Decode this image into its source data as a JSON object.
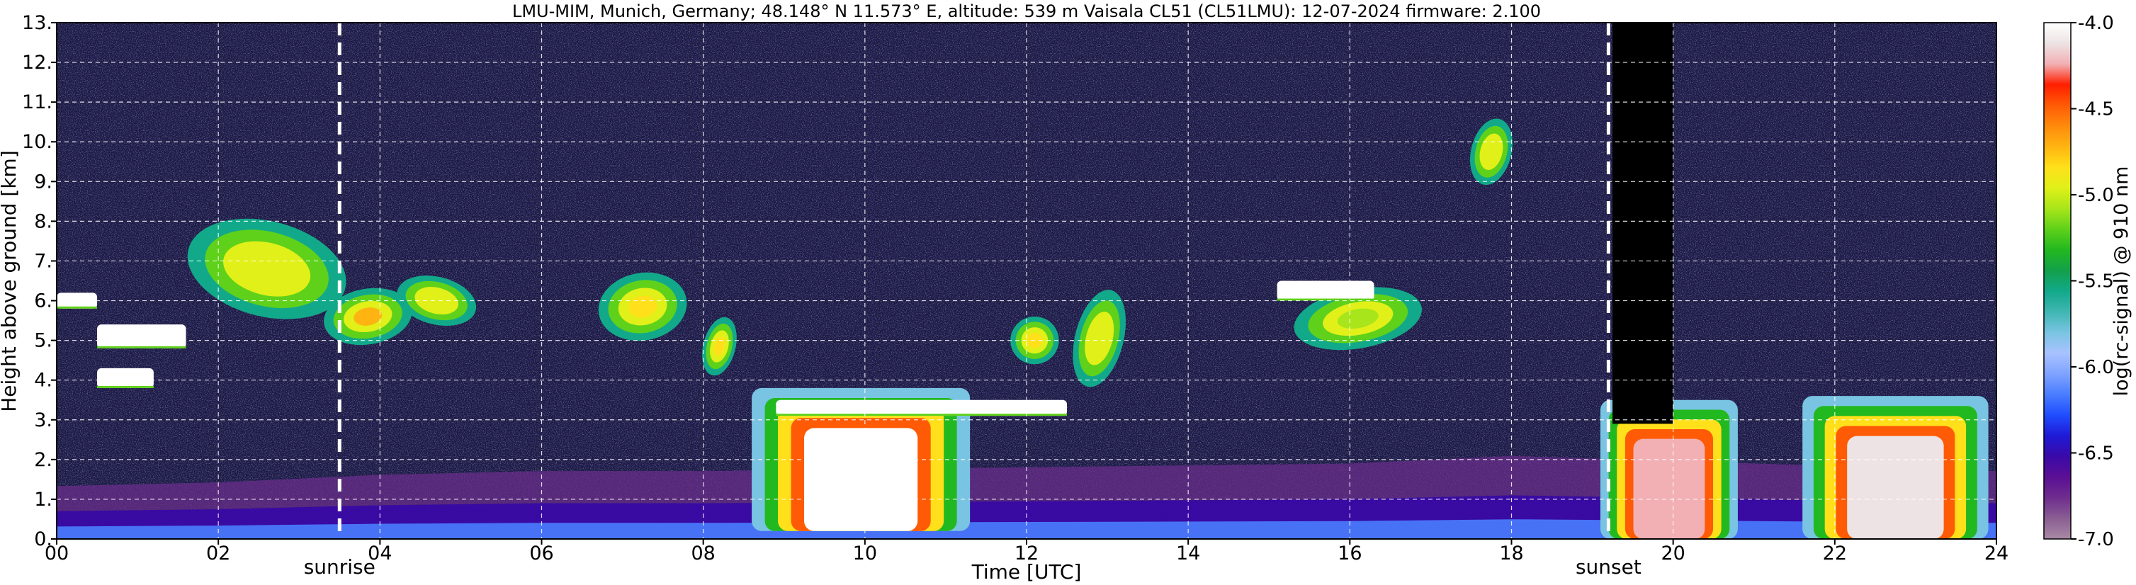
{
  "chart_data": {
    "type": "heatmap",
    "title": "LMU-MIM, Munich, Germany; 48.148° N 11.573° E, altitude: 539 m    Vaisala CL51 (CL51LMU): 12-07-2024    firmware: 2.100",
    "xlabel": "Time [UTC]",
    "ylabel": "Height above ground [km]",
    "xlim": [
      0,
      24
    ],
    "ylim": [
      0,
      13
    ],
    "x_ticks": [
      "00",
      "02",
      "04",
      "06",
      "08",
      "10",
      "12",
      "14",
      "16",
      "18",
      "20",
      "22",
      "24"
    ],
    "y_ticks": [
      "0.",
      "1.",
      "2.",
      "3.",
      "4.",
      "5.",
      "6.",
      "7.",
      "8.",
      "9.",
      "10.",
      "11.",
      "12.",
      "13."
    ],
    "grid": true,
    "colorbar": {
      "label": "log(rc-signal) @ 910 nm",
      "range": [
        -7.0,
        -4.0
      ],
      "ticks": [
        "-4.0",
        "-4.5",
        "-5.0",
        "-5.5",
        "-6.0",
        "-6.5",
        "-7.0"
      ],
      "tick_values": [
        -4.0,
        -4.5,
        -5.0,
        -5.5,
        -6.0,
        -6.5,
        -7.0
      ],
      "colors": [
        "#a98aa5",
        "#8a5e92",
        "#6e2d8e",
        "#5b0f95",
        "#3a0aa8",
        "#1f1ad6",
        "#1f4dff",
        "#4a7dff",
        "#7fa3ff",
        "#a9c2ff",
        "#79c4e2",
        "#3fb6b2",
        "#12a98a",
        "#13a04a",
        "#22b81f",
        "#5fd11a",
        "#a8e51a",
        "#e0f018",
        "#ffe01a",
        "#ffb411",
        "#ff8a0c",
        "#ff5a05",
        "#ff1f00",
        "#f2b0b4",
        "#ede3e4",
        "#ffffff"
      ]
    },
    "markers": [
      {
        "label": "sunrise",
        "time": 3.5
      },
      {
        "label": "sunset",
        "time": 19.2
      }
    ],
    "boundary_layer": [
      {
        "t": 0,
        "h": 0.7
      },
      {
        "t": 2,
        "h": 0.75
      },
      {
        "t": 4,
        "h": 0.85
      },
      {
        "t": 6,
        "h": 0.9
      },
      {
        "t": 8,
        "h": 0.9
      },
      {
        "t": 12,
        "h": 0.95
      },
      {
        "t": 16,
        "h": 1.0
      },
      {
        "t": 18,
        "h": 1.1
      },
      {
        "t": 24,
        "h": 0.9
      }
    ],
    "features": [
      {
        "kind": "cloud",
        "t0": 1.6,
        "t1": 3.6,
        "h0": 5.6,
        "h1": 8.0,
        "level": -4.9
      },
      {
        "kind": "cloud",
        "t0": 3.3,
        "t1": 4.4,
        "h0": 4.9,
        "h1": 6.3,
        "level": -4.7
      },
      {
        "kind": "cloud",
        "t0": 4.2,
        "t1": 5.2,
        "h0": 5.4,
        "h1": 6.6,
        "level": -5.0
      },
      {
        "kind": "cloud",
        "t0": 6.7,
        "t1": 7.8,
        "h0": 5.0,
        "h1": 6.7,
        "level": -4.8
      },
      {
        "kind": "cloud",
        "t0": 8.0,
        "t1": 8.4,
        "h0": 4.1,
        "h1": 5.6,
        "level": -4.8
      },
      {
        "kind": "cloud",
        "t0": 11.8,
        "t1": 12.4,
        "h0": 4.4,
        "h1": 5.6,
        "level": -4.8
      },
      {
        "kind": "cloud",
        "t0": 12.6,
        "t1": 13.2,
        "h0": 3.8,
        "h1": 6.3,
        "level": -4.9
      },
      {
        "kind": "cloud",
        "t0": 15.3,
        "t1": 16.9,
        "h0": 4.8,
        "h1": 6.3,
        "level": -5.1
      },
      {
        "kind": "cloud",
        "t0": 17.5,
        "t1": 18.0,
        "h0": 8.9,
        "h1": 10.6,
        "level": -4.9
      },
      {
        "kind": "convective",
        "t0": 8.6,
        "t1": 11.3,
        "h0": 0.2,
        "h1": 3.8,
        "level": -4.0
      },
      {
        "kind": "convective",
        "t0": 19.1,
        "t1": 20.8,
        "h0": 0.0,
        "h1": 3.5,
        "level": -4.2
      },
      {
        "kind": "convective",
        "t0": 21.6,
        "t1": 23.9,
        "h0": 0.0,
        "h1": 3.6,
        "level": -4.1
      },
      {
        "kind": "fog_layer",
        "t0": 0.0,
        "t1": 0.5,
        "h0": 5.8,
        "h1": 6.2,
        "level": -4.0
      },
      {
        "kind": "fog_layer",
        "t0": 0.5,
        "t1": 1.6,
        "h0": 4.8,
        "h1": 5.4,
        "level": -4.0
      },
      {
        "kind": "fog_layer",
        "t0": 0.5,
        "t1": 1.2,
        "h0": 3.8,
        "h1": 4.3,
        "level": -4.0
      },
      {
        "kind": "fog_layer",
        "t0": 8.9,
        "t1": 12.5,
        "h0": 3.1,
        "h1": 3.5,
        "level": -4.0
      },
      {
        "kind": "fog_layer",
        "t0": 15.1,
        "t1": 16.3,
        "h0": 6.0,
        "h1": 6.5,
        "level": -4.0
      },
      {
        "kind": "dark_gap",
        "t0": 19.25,
        "t1": 20.0,
        "h0": 2.9,
        "h1": 13.0,
        "level": -7.0
      }
    ]
  }
}
